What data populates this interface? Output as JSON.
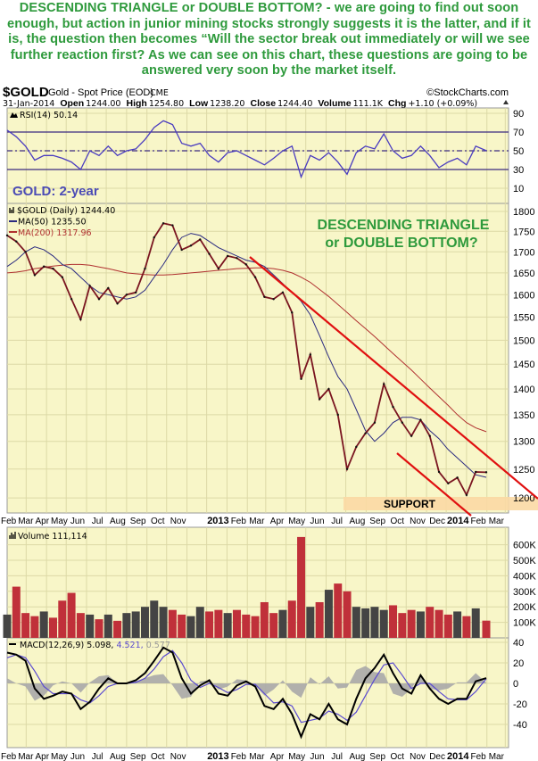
{
  "headline": "DESCENDING TRIANGLE or DOUBLE BOTTOM? - we are going to find out soon enough, but action in junior mining stocks strongly suggests it is the latter, and if it is, the question then becomes “Will the sector break out immediately or will we see further reaction first? As we can see on this chart, these questions are going to be answered very soon by the market itself.",
  "chart_header": {
    "symbol": "$GOLD",
    "name": "Gold - Spot Price (EOD)",
    "exchange": "CME",
    "copyright": "©StockCharts.com",
    "date": "31-Jan-2014",
    "open_label": "Open",
    "open": "1244.00",
    "high_label": "High",
    "high": "1254.80",
    "low_label": "Low",
    "low": "1238.20",
    "close_label": "Close",
    "close": "1244.40",
    "volume_label": "Volume",
    "volume": "111.1K",
    "chg_label": "Chg",
    "chg": "+1.10 (+0.09%)"
  },
  "colors": {
    "headline": "#2e9a3c",
    "panel_bg": "#f8f6c8",
    "grid": "#dcd9a6",
    "price": "#7a1520",
    "ma50": "#2a2a80",
    "ma200": "#b03030",
    "trendline": "#e01010",
    "support_band": "#fbd9a4",
    "rsi": "#4a3cc0",
    "volume_up": "#c0303a",
    "volume_down": "#444444",
    "macd": "#000000",
    "signal": "#5a4ad0",
    "histogram": "#a8a8a8",
    "gold_label": "#4b4bb5"
  },
  "chart_data": [
    {
      "type": "line",
      "panel": "RSI",
      "label": "RSI(14) 50.14",
      "overlay_label": "GOLD: 2-year",
      "ylim": [
        0,
        100
      ],
      "yticks": [
        90,
        70,
        50,
        30,
        10
      ],
      "reference_lines": [
        70,
        50,
        30
      ],
      "x": [
        "2012-02-01",
        "2012-02-15",
        "2012-02-29",
        "2012-03-14",
        "2012-03-28",
        "2012-04-11",
        "2012-04-25",
        "2012-05-09",
        "2012-05-23",
        "2012-06-06",
        "2012-06-20",
        "2012-07-04",
        "2012-07-18",
        "2012-08-01",
        "2012-08-15",
        "2012-08-29",
        "2012-09-12",
        "2012-09-26",
        "2012-10-10",
        "2012-10-24",
        "2012-11-07",
        "2012-11-21",
        "2012-12-05",
        "2012-12-19",
        "2013-01-02",
        "2013-01-16",
        "2013-01-30",
        "2013-02-13",
        "2013-02-27",
        "2013-03-13",
        "2013-03-27",
        "2013-04-10",
        "2013-04-24",
        "2013-05-08",
        "2013-05-22",
        "2013-06-05",
        "2013-06-19",
        "2013-07-03",
        "2013-07-17",
        "2013-07-31",
        "2013-08-14",
        "2013-08-28",
        "2013-09-11",
        "2013-09-25",
        "2013-10-09",
        "2013-10-23",
        "2013-11-06",
        "2013-11-20",
        "2013-12-04",
        "2013-12-18",
        "2014-01-01",
        "2014-01-15",
        "2014-01-31"
      ],
      "values": [
        72,
        65,
        55,
        40,
        45,
        45,
        42,
        38,
        30,
        50,
        45,
        55,
        45,
        50,
        52,
        62,
        75,
        82,
        78,
        58,
        55,
        58,
        45,
        38,
        48,
        50,
        45,
        40,
        35,
        42,
        50,
        55,
        22,
        45,
        40,
        48,
        38,
        25,
        48,
        55,
        52,
        68,
        50,
        42,
        45,
        55,
        45,
        32,
        38,
        42,
        35,
        55,
        50.14
      ]
    },
    {
      "type": "line",
      "panel": "Price",
      "label": "$GOLD (Daily) 1244.40",
      "scale": "log",
      "ylim": [
        1180,
        1830
      ],
      "yticks": [
        1800,
        1750,
        1700,
        1650,
        1600,
        1550,
        1500,
        1450,
        1400,
        1350,
        1300,
        1250,
        1200
      ],
      "annotation": [
        "DESCENDING TRIANGLE",
        "or DOUBLE BOTTOM?"
      ],
      "support_label": "SUPPORT",
      "series": [
        {
          "name": "$GOLD (Daily) 1244.40",
          "values": [
            1740,
            1725,
            1700,
            1645,
            1665,
            1660,
            1640,
            1590,
            1545,
            1620,
            1590,
            1615,
            1580,
            1600,
            1605,
            1660,
            1735,
            1770,
            1765,
            1705,
            1715,
            1730,
            1695,
            1660,
            1690,
            1685,
            1670,
            1640,
            1595,
            1590,
            1605,
            1560,
            1420,
            1470,
            1380,
            1400,
            1350,
            1250,
            1290,
            1315,
            1335,
            1410,
            1365,
            1335,
            1310,
            1340,
            1310,
            1245,
            1225,
            1235,
            1205,
            1245,
            1244.4
          ]
        },
        {
          "name": "MA(50) 1235.50",
          "values": [
            1665,
            1680,
            1700,
            1712,
            1705,
            1690,
            1670,
            1660,
            1640,
            1620,
            1605,
            1600,
            1595,
            1590,
            1595,
            1610,
            1640,
            1670,
            1705,
            1735,
            1745,
            1740,
            1725,
            1710,
            1700,
            1690,
            1680,
            1675,
            1665,
            1645,
            1625,
            1605,
            1585,
            1555,
            1510,
            1465,
            1425,
            1400,
            1360,
            1320,
            1300,
            1315,
            1335,
            1345,
            1345,
            1340,
            1320,
            1305,
            1285,
            1270,
            1255,
            1240,
            1235.5
          ]
        },
        {
          "name": "MA(200) 1317.96",
          "values": [
            1650,
            1652,
            1655,
            1660,
            1663,
            1666,
            1668,
            1670,
            1670,
            1668,
            1664,
            1660,
            1655,
            1650,
            1648,
            1646,
            1645,
            1645,
            1646,
            1648,
            1650,
            1652,
            1654,
            1656,
            1658,
            1660,
            1661,
            1662,
            1662,
            1660,
            1656,
            1650,
            1640,
            1628,
            1612,
            1596,
            1578,
            1560,
            1542,
            1525,
            1508,
            1490,
            1472,
            1455,
            1438,
            1420,
            1402,
            1385,
            1368,
            1350,
            1335,
            1325,
            1317.96
          ]
        }
      ]
    },
    {
      "type": "bar",
      "panel": "Volume",
      "label": "Volume 111,114",
      "ylim": [
        0,
        680
      ],
      "yticks": [
        "600K",
        "500K",
        "400K",
        "300K",
        "200K",
        "100K"
      ],
      "ytick_values": [
        600,
        500,
        400,
        300,
        200,
        100
      ],
      "unit": "K",
      "values": [
        150,
        330,
        160,
        140,
        170,
        130,
        240,
        290,
        160,
        150,
        120,
        150,
        110,
        160,
        170,
        200,
        240,
        200,
        180,
        150,
        140,
        200,
        170,
        180,
        160,
        180,
        150,
        140,
        230,
        160,
        180,
        240,
        650,
        200,
        230,
        310,
        350,
        300,
        200,
        190,
        200,
        180,
        210,
        160,
        180,
        170,
        200,
        180,
        150,
        170,
        140,
        190,
        111.114
      ]
    },
    {
      "type": "line",
      "panel": "MACD",
      "label_prefix": "MACD(12,26,9)",
      "label_macd": "5.098,",
      "label_signal": "4.521,",
      "label_hist": "0.577",
      "ylim": [
        -62,
        45
      ],
      "yticks": [
        40,
        20,
        0,
        -20,
        -40
      ],
      "series": [
        {
          "name": "MACD",
          "values": [
            30,
            28,
            22,
            -5,
            -15,
            -12,
            -8,
            -10,
            -25,
            -18,
            -5,
            5,
            0,
            0,
            3,
            10,
            22,
            35,
            30,
            5,
            -10,
            -2,
            3,
            -10,
            -12,
            -2,
            2,
            -3,
            -22,
            -25,
            -15,
            -30,
            -52,
            -30,
            -35,
            -20,
            -35,
            -40,
            -15,
            5,
            15,
            28,
            10,
            -5,
            -10,
            8,
            -5,
            -15,
            -20,
            -15,
            -15,
            2,
            5.098
          ]
        },
        {
          "name": "Signal",
          "values": [
            25,
            28,
            25,
            12,
            -3,
            -10,
            -10,
            -10,
            -16,
            -19,
            -12,
            -3,
            0,
            0,
            1,
            5,
            14,
            26,
            32,
            20,
            3,
            -4,
            0,
            -4,
            -9,
            -6,
            -1,
            -1,
            -10,
            -19,
            -18,
            -22,
            -38,
            -36,
            -34,
            -27,
            -30,
            -36,
            -28,
            -12,
            4,
            18,
            20,
            8,
            -5,
            0,
            0,
            -8,
            -15,
            -16,
            -16,
            -8,
            4.521
          ]
        }
      ]
    }
  ],
  "x_axis": [
    {
      "date": "2012-02-01",
      "label": "Feb"
    },
    {
      "date": "2012-03-01",
      "label": "Mar"
    },
    {
      "date": "2012-04-01",
      "label": "Apr"
    },
    {
      "date": "2012-05-01",
      "label": "May"
    },
    {
      "date": "2012-06-01",
      "label": "Jun"
    },
    {
      "date": "2012-07-01",
      "label": "Jul"
    },
    {
      "date": "2012-08-01",
      "label": "Aug"
    },
    {
      "date": "2012-09-01",
      "label": "Sep"
    },
    {
      "date": "2012-10-01",
      "label": "Oct"
    },
    {
      "date": "2012-11-01",
      "label": "Nov"
    },
    {
      "date": "2012-12-01",
      "label": ""
    },
    {
      "date": "2013-01-01",
      "label": "2013",
      "bold": true
    },
    {
      "date": "2013-02-01",
      "label": "Feb"
    },
    {
      "date": "2013-03-01",
      "label": "Mar"
    },
    {
      "date": "2013-04-01",
      "label": "Apr"
    },
    {
      "date": "2013-05-01",
      "label": "May"
    },
    {
      "date": "2013-06-01",
      "label": "Jun"
    },
    {
      "date": "2013-07-01",
      "label": "Jul"
    },
    {
      "date": "2013-08-01",
      "label": "Aug"
    },
    {
      "date": "2013-09-01",
      "label": "Sep"
    },
    {
      "date": "2013-10-01",
      "label": "Oct"
    },
    {
      "date": "2013-11-01",
      "label": "Nov"
    },
    {
      "date": "2013-12-01",
      "label": "Dec"
    },
    {
      "date": "2014-01-01",
      "label": "2014",
      "bold": true
    },
    {
      "date": "2014-02-01",
      "label": "Feb"
    },
    {
      "date": "2014-03-01",
      "label": "Mar"
    }
  ]
}
